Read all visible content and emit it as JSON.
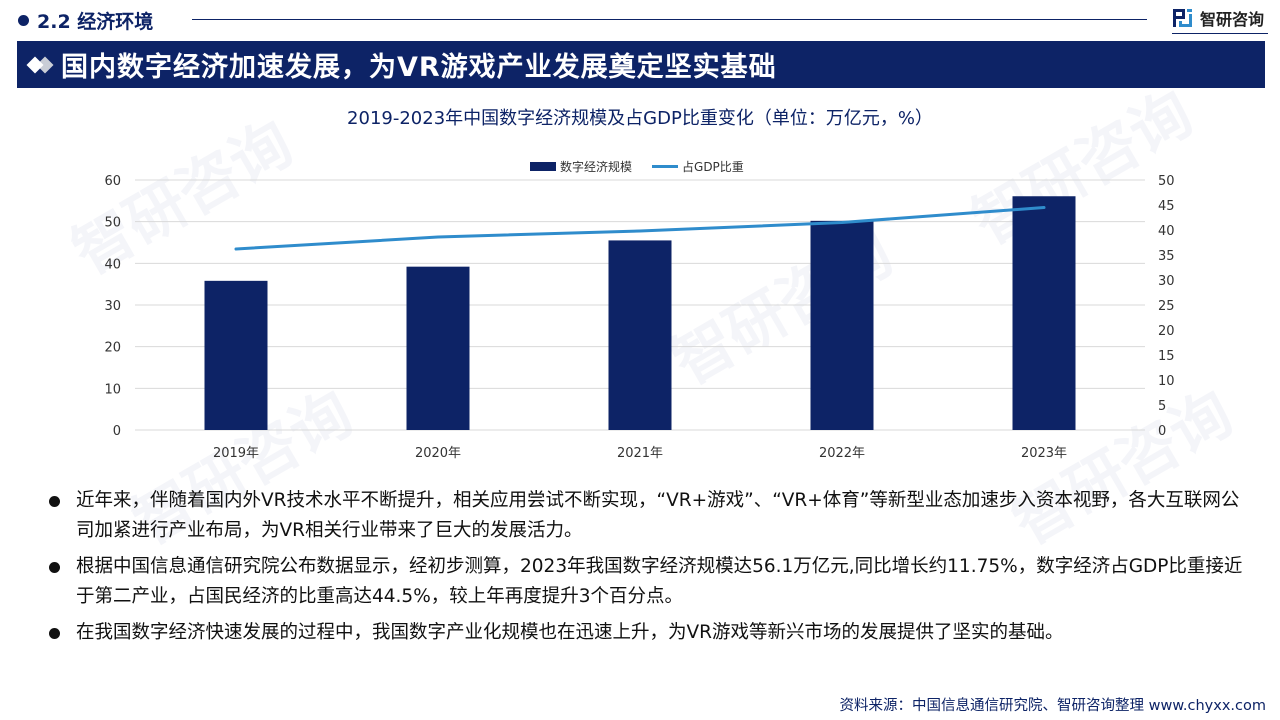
{
  "section": {
    "number_title": "2.2 经济环境"
  },
  "brand": {
    "name": "智研咨询"
  },
  "headline": "国内数字经济加速发展，为VR游戏产业发展奠定坚实基础",
  "chart": {
    "title": "2019-2023年中国数字经济规模及占GDP比重变化（单位：万亿元，%）",
    "legend": {
      "bar": "数字经济规模",
      "line": "占GDP比重"
    }
  },
  "chart_data": {
    "type": "bar",
    "title": "2019-2023年中国数字经济规模及占GDP比重变化（单位：万亿元，%）",
    "categories": [
      "2019年",
      "2020年",
      "2021年",
      "2022年",
      "2023年"
    ],
    "series": [
      {
        "name": "数字经济规模",
        "type": "bar",
        "axis": "left",
        "color": "#0d2366",
        "values": [
          35.8,
          39.2,
          45.5,
          50.2,
          56.1
        ]
      },
      {
        "name": "占GDP比重",
        "type": "line",
        "axis": "right",
        "color": "#2f8ccc",
        "values": [
          36.2,
          38.6,
          39.8,
          41.5,
          44.5
        ]
      }
    ],
    "left_axis": {
      "ylim": [
        0,
        60
      ],
      "ticks": [
        0,
        10,
        20,
        30,
        40,
        50,
        60
      ]
    },
    "right_axis": {
      "ylim": [
        0,
        50
      ],
      "ticks": [
        0,
        5,
        10,
        15,
        20,
        25,
        30,
        35,
        40,
        45,
        50
      ]
    },
    "xlabel": "",
    "ylabel": "",
    "grid": true,
    "legend_position": "top"
  },
  "bullets": [
    "近年来，伴随着国内外VR技术水平不断提升，相关应用尝试不断实现，“VR+游戏”、“VR+体育”等新型业态加速步入资本视野，各大互联网公司加紧进行产业布局，为VR相关行业带来了巨大的发展活力。",
    "根据中国信息通信研究院公布数据显示，经初步测算，2023年我国数字经济规模达56.1万亿元,同比增长约11.75%，数字经济占GDP比重接近于第二产业，占国民经济的比重高达44.5%，较上年再度提升3个百分点。",
    "在我国数字经济快速发展的过程中，我国数字产业化规模也在迅速上升，为VR游戏等新兴市场的发展提供了坚实的基础。"
  ],
  "source": "资料来源：中国信息通信研究院、智研咨询整理 www.chyxx.com",
  "colors": {
    "navy": "#0d2366",
    "line_blue": "#2f8ccc",
    "grid": "#d9d9d9"
  }
}
